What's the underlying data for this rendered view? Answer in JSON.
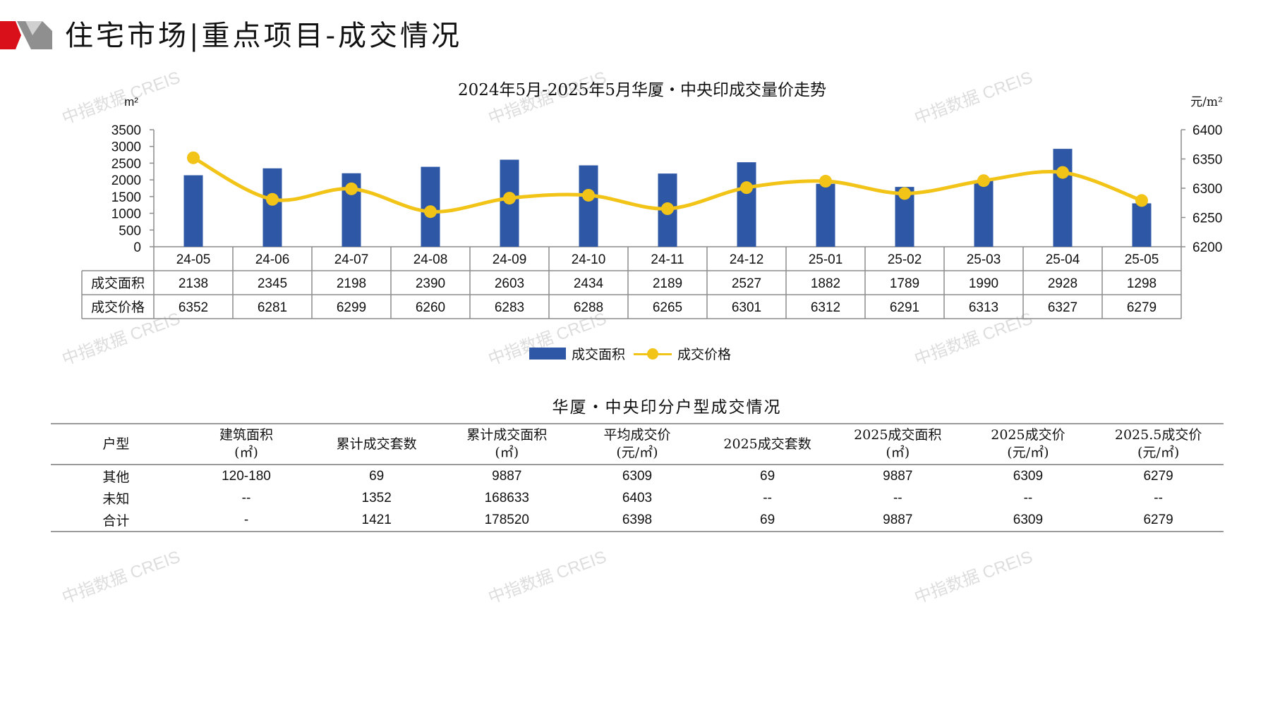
{
  "header": {
    "title": "住宅市场|重点项目-成交情况",
    "brand_colors": {
      "red": "#d9101a",
      "gray": "#8a8a8a"
    }
  },
  "watermark": "中指数据 CREIS",
  "chart_data": {
    "type": "bar+line",
    "title": "2024年5月-2025年5月华厦・中央印成交量价走势",
    "left_axis_unit": "m²",
    "right_axis_unit": "元/m²",
    "left_ylim": [
      0,
      3500
    ],
    "left_ticks": [
      "3500",
      "3000",
      "2500",
      "2000",
      "1500",
      "1000",
      "500",
      "0"
    ],
    "right_ylim": [
      6200,
      6400
    ],
    "right_ticks": [
      "6400",
      "6350",
      "6300",
      "6250",
      "6200"
    ],
    "categories": [
      "24-05",
      "24-06",
      "24-07",
      "24-08",
      "24-09",
      "24-10",
      "24-11",
      "24-12",
      "25-01",
      "25-02",
      "25-03",
      "25-04",
      "25-05"
    ],
    "series": [
      {
        "name": "成交面积",
        "type": "bar",
        "axis": "left",
        "color": "#2e58a6",
        "values": [
          2138,
          2345,
          2198,
          2390,
          2603,
          2434,
          2189,
          2527,
          1882,
          1789,
          1990,
          2928,
          1298
        ]
      },
      {
        "name": "成交价格",
        "type": "line",
        "axis": "right",
        "color": "#f2c418",
        "values": [
          6352,
          6281,
          6299,
          6260,
          6283,
          6288,
          6265,
          6301,
          6312,
          6291,
          6313,
          6327,
          6279
        ]
      }
    ],
    "legend": [
      "成交面积",
      "成交价格"
    ],
    "legend_position": "bottom",
    "grid": false
  },
  "table": {
    "title": "华厦・中央印分户型成交情况",
    "headers": [
      [
        "户型"
      ],
      [
        "建筑面积",
        "(㎡)"
      ],
      [
        "累计成交套数"
      ],
      [
        "累计成交面积",
        "(㎡)"
      ],
      [
        "平均成交价",
        "(元/㎡)"
      ],
      [
        "2025成交套数"
      ],
      [
        "2025成交面积",
        "(㎡)"
      ],
      [
        "2025成交价",
        "(元/㎡)"
      ],
      [
        "2025.5成交价",
        "(元/㎡)"
      ]
    ],
    "rows": [
      [
        "其他",
        "120-180",
        "69",
        "9887",
        "6309",
        "69",
        "9887",
        "6309",
        "6279"
      ],
      [
        "未知",
        "--",
        "1352",
        "168633",
        "6403",
        "--",
        "--",
        "--",
        "--"
      ],
      [
        "合计",
        "-",
        "1421",
        "178520",
        "6398",
        "69",
        "9887",
        "6309",
        "6279"
      ]
    ]
  }
}
